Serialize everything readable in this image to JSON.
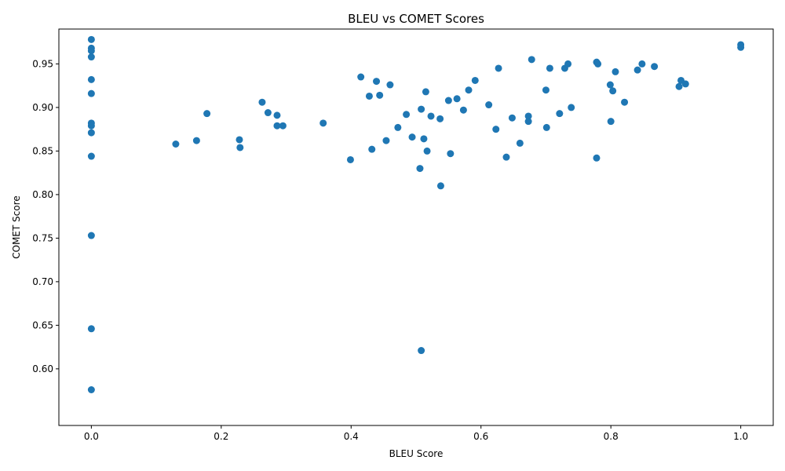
{
  "chart_data": {
    "type": "scatter",
    "title": "BLEU vs COMET Scores",
    "xlabel": "BLEU Score",
    "ylabel": "COMET Score",
    "xlim": [
      -0.05,
      1.05
    ],
    "ylim": [
      0.535,
      0.99
    ],
    "xticks": [
      0.0,
      0.2,
      0.4,
      0.6,
      0.8,
      1.0
    ],
    "xtick_labels": [
      "0.0",
      "0.2",
      "0.4",
      "0.6",
      "0.8",
      "1.0"
    ],
    "yticks": [
      0.6,
      0.65,
      0.7,
      0.75,
      0.8,
      0.85,
      0.9,
      0.95
    ],
    "ytick_labels": [
      "0.60",
      "0.65",
      "0.70",
      "0.75",
      "0.80",
      "0.85",
      "0.90",
      "0.95"
    ],
    "grid": false,
    "color": "#1f77b4",
    "points": [
      [
        0.0,
        0.978
      ],
      [
        0.0,
        0.968
      ],
      [
        0.0,
        0.965
      ],
      [
        0.0,
        0.958
      ],
      [
        0.0,
        0.932
      ],
      [
        0.0,
        0.916
      ],
      [
        0.0,
        0.882
      ],
      [
        0.0,
        0.879
      ],
      [
        0.0,
        0.871
      ],
      [
        0.0,
        0.844
      ],
      [
        0.0,
        0.753
      ],
      [
        0.0,
        0.646
      ],
      [
        0.0,
        0.576
      ],
      [
        0.13,
        0.858
      ],
      [
        0.162,
        0.862
      ],
      [
        0.178,
        0.893
      ],
      [
        0.228,
        0.863
      ],
      [
        0.229,
        0.854
      ],
      [
        0.263,
        0.906
      ],
      [
        0.272,
        0.894
      ],
      [
        0.286,
        0.891
      ],
      [
        0.286,
        0.879
      ],
      [
        0.295,
        0.879
      ],
      [
        0.357,
        0.882
      ],
      [
        0.399,
        0.84
      ],
      [
        0.415,
        0.935
      ],
      [
        0.428,
        0.913
      ],
      [
        0.432,
        0.852
      ],
      [
        0.439,
        0.93
      ],
      [
        0.444,
        0.914
      ],
      [
        0.454,
        0.862
      ],
      [
        0.46,
        0.926
      ],
      [
        0.472,
        0.877
      ],
      [
        0.485,
        0.892
      ],
      [
        0.494,
        0.866
      ],
      [
        0.506,
        0.83
      ],
      [
        0.508,
        0.898
      ],
      [
        0.508,
        0.621
      ],
      [
        0.512,
        0.864
      ],
      [
        0.515,
        0.918
      ],
      [
        0.517,
        0.85
      ],
      [
        0.523,
        0.89
      ],
      [
        0.537,
        0.887
      ],
      [
        0.538,
        0.81
      ],
      [
        0.55,
        0.908
      ],
      [
        0.553,
        0.847
      ],
      [
        0.563,
        0.91
      ],
      [
        0.573,
        0.897
      ],
      [
        0.581,
        0.92
      ],
      [
        0.591,
        0.931
      ],
      [
        0.612,
        0.903
      ],
      [
        0.623,
        0.875
      ],
      [
        0.627,
        0.945
      ],
      [
        0.639,
        0.843
      ],
      [
        0.648,
        0.888
      ],
      [
        0.66,
        0.859
      ],
      [
        0.673,
        0.89
      ],
      [
        0.673,
        0.884
      ],
      [
        0.678,
        0.955
      ],
      [
        0.7,
        0.92
      ],
      [
        0.701,
        0.877
      ],
      [
        0.706,
        0.945
      ],
      [
        0.721,
        0.893
      ],
      [
        0.729,
        0.945
      ],
      [
        0.734,
        0.95
      ],
      [
        0.739,
        0.9
      ],
      [
        0.778,
        0.842
      ],
      [
        0.778,
        0.952
      ],
      [
        0.78,
        0.95
      ],
      [
        0.799,
        0.926
      ],
      [
        0.8,
        0.884
      ],
      [
        0.803,
        0.919
      ],
      [
        0.807,
        0.941
      ],
      [
        0.821,
        0.906
      ],
      [
        0.841,
        0.943
      ],
      [
        0.848,
        0.95
      ],
      [
        0.867,
        0.947
      ],
      [
        0.905,
        0.924
      ],
      [
        0.908,
        0.931
      ],
      [
        0.915,
        0.927
      ],
      [
        1.0,
        0.972
      ],
      [
        1.0,
        0.969
      ]
    ]
  }
}
